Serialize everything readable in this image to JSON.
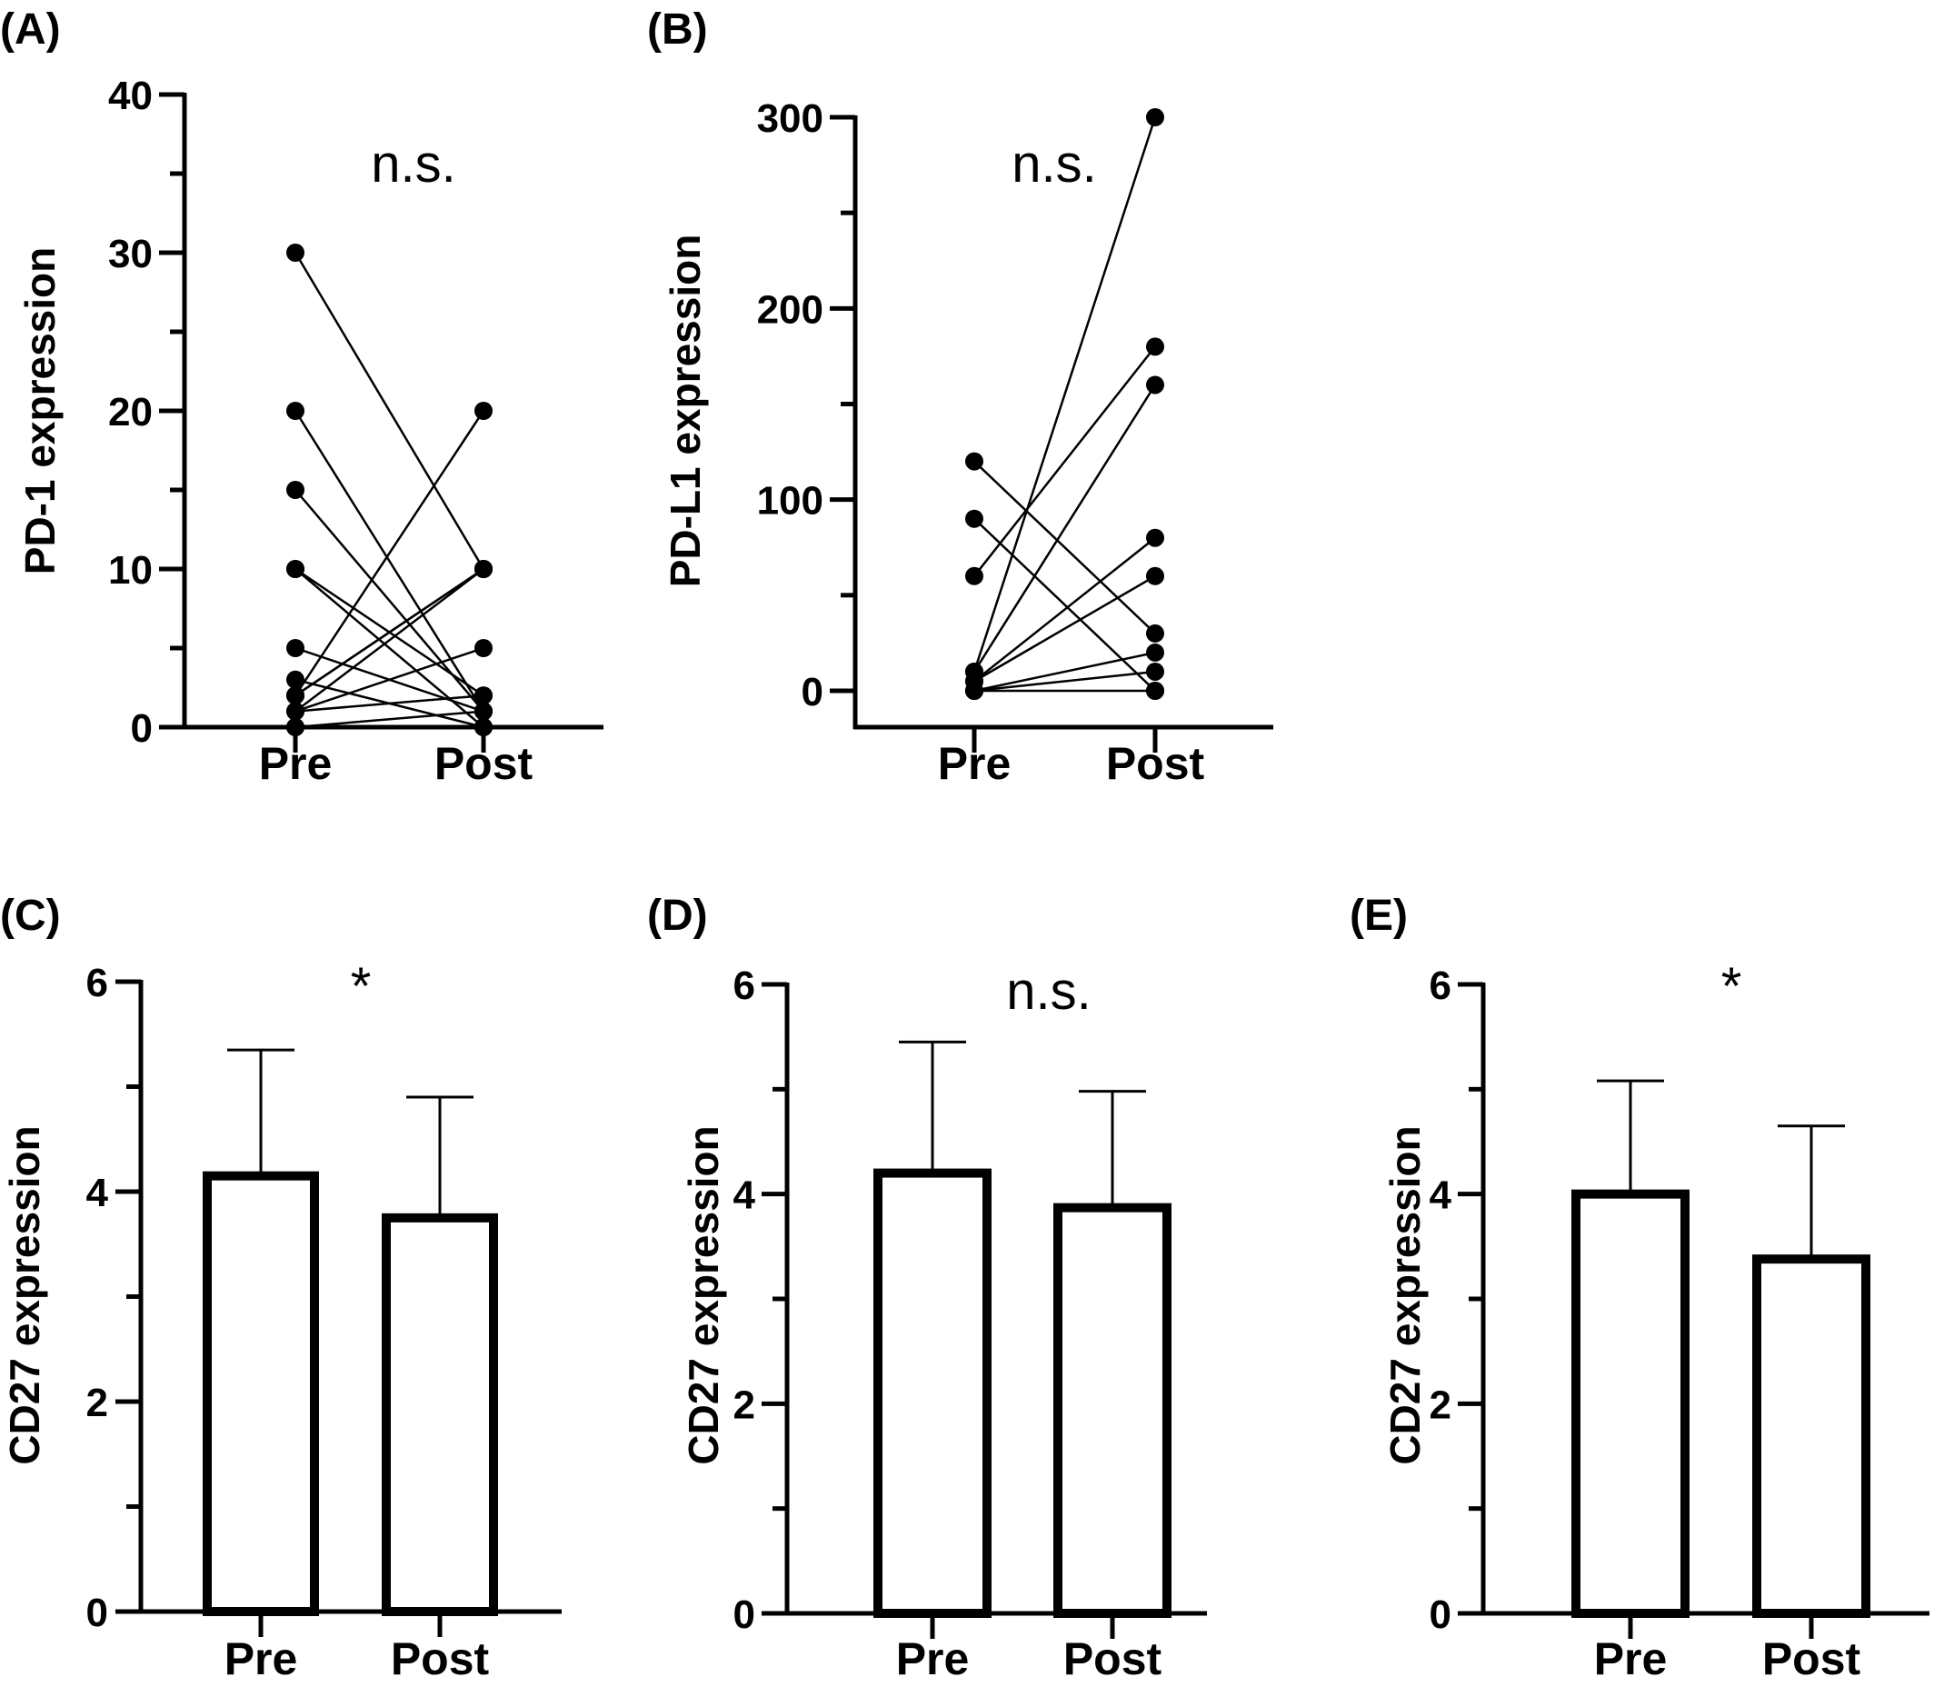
{
  "figure": {
    "panels": [
      {
        "label": "(A)",
        "significance": "n.s."
      },
      {
        "label": "(B)",
        "significance": "n.s."
      },
      {
        "label": "(C)",
        "significance": "*"
      },
      {
        "label": "(D)",
        "significance": "n.s."
      },
      {
        "label": "(E)",
        "significance": "*"
      }
    ]
  },
  "chart_data": [
    {
      "panel": "(A)",
      "type": "line",
      "title": "",
      "xlabel": "",
      "ylabel": "PD-1 expression",
      "categories": [
        "Pre",
        "Post"
      ],
      "ylim": [
        0,
        40
      ],
      "yticks": [
        0,
        10,
        20,
        30,
        40
      ],
      "annotation": "n.s.",
      "pairs": [
        [
          30,
          10
        ],
        [
          20,
          1
        ],
        [
          15,
          1
        ],
        [
          10,
          2
        ],
        [
          10,
          0
        ],
        [
          5,
          1
        ],
        [
          3,
          0
        ],
        [
          2,
          20
        ],
        [
          2,
          10
        ],
        [
          2,
          10
        ],
        [
          1,
          10
        ],
        [
          1,
          5
        ],
        [
          1,
          2
        ],
        [
          0,
          1
        ],
        [
          0,
          0
        ]
      ]
    },
    {
      "panel": "(B)",
      "type": "line",
      "title": "",
      "xlabel": "",
      "ylabel": "PD-L1 expression",
      "categories": [
        "Pre",
        "Post"
      ],
      "ylim": [
        0,
        300
      ],
      "yticks": [
        0,
        100,
        200,
        300
      ],
      "annotation": "n.s.",
      "pairs": [
        [
          120,
          30
        ],
        [
          90,
          0
        ],
        [
          60,
          180
        ],
        [
          10,
          300
        ],
        [
          10,
          160
        ],
        [
          5,
          80
        ],
        [
          5,
          60
        ],
        [
          0,
          20
        ],
        [
          0,
          10
        ],
        [
          0,
          0
        ]
      ]
    },
    {
      "panel": "(C)",
      "type": "bar",
      "title": "",
      "xlabel": "",
      "ylabel": "CD27 expression",
      "categories": [
        "Pre",
        "Post"
      ],
      "values": [
        4.15,
        3.75
      ],
      "error_upper": [
        5.35,
        4.9
      ],
      "ylim": [
        0,
        6
      ],
      "yticks": [
        0,
        2,
        4,
        6
      ],
      "annotation": "*"
    },
    {
      "panel": "(D)",
      "type": "bar",
      "title": "",
      "xlabel": "",
      "ylabel": "CD27 expression",
      "categories": [
        "Pre",
        "Post"
      ],
      "values": [
        4.2,
        3.87
      ],
      "error_upper": [
        5.45,
        4.98
      ],
      "ylim": [
        0,
        6
      ],
      "yticks": [
        0,
        2,
        4,
        6
      ],
      "annotation": "n.s."
    },
    {
      "panel": "(E)",
      "type": "bar",
      "title": "",
      "xlabel": "",
      "ylabel": "CD27 expression",
      "categories": [
        "Pre",
        "Post"
      ],
      "values": [
        4.0,
        3.38
      ],
      "error_upper": [
        5.08,
        4.65
      ],
      "ylim": [
        0,
        6
      ],
      "yticks": [
        0,
        2,
        4,
        6
      ],
      "annotation": "*"
    }
  ]
}
